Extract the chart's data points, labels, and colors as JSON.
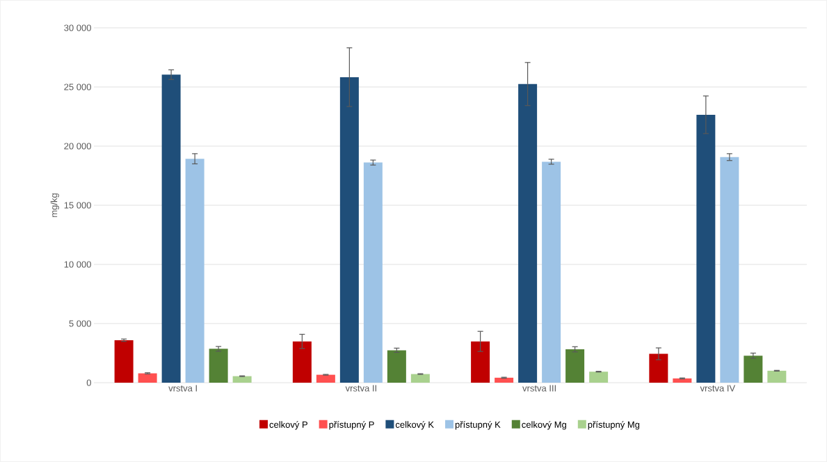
{
  "chart_data": {
    "type": "bar",
    "ylabel": "mg/kg",
    "categories": [
      "vrstva I",
      "vrstva II",
      "vrstva III",
      "vrstva IV"
    ],
    "series": [
      {
        "name": "celkový P",
        "color": "#c00000",
        "values": [
          3590,
          3490,
          3490,
          2440
        ],
        "errors": [
          100,
          600,
          850,
          500
        ]
      },
      {
        "name": "přístupný P",
        "color": "#ff5050",
        "values": [
          790,
          670,
          420,
          360
        ],
        "errors": [
          50,
          30,
          40,
          40
        ]
      },
      {
        "name": "celkový K",
        "color": "#1f4e79",
        "values": [
          26040,
          25830,
          25250,
          22650
        ],
        "errors": [
          410,
          2480,
          1820,
          1590
        ]
      },
      {
        "name": "přístupný K",
        "color": "#9dc3e6",
        "values": [
          18930,
          18610,
          18680,
          19070
        ],
        "errors": [
          430,
          210,
          210,
          290
        ]
      },
      {
        "name": "celkový Mg",
        "color": "#548235",
        "values": [
          2860,
          2740,
          2820,
          2280
        ],
        "errors": [
          200,
          180,
          220,
          220
        ]
      },
      {
        "name": "přístupný Mg",
        "color": "#a9d18e",
        "values": [
          550,
          730,
          930,
          1010
        ],
        "errors": [
          30,
          30,
          30,
          30
        ]
      }
    ],
    "ylim": [
      0,
      30000
    ],
    "yticks": [
      0,
      {
        "value": 5000,
        "label": "5 000"
      },
      {
        "value": 10000,
        "label": "10 000"
      },
      {
        "value": 15000,
        "label": "15 000"
      },
      {
        "value": 20000,
        "label": "20 000"
      },
      {
        "value": 25000,
        "label": "25 000"
      },
      {
        "value": 30000,
        "label": "30 000"
      }
    ],
    "grid": "y",
    "legend": "bottom"
  }
}
